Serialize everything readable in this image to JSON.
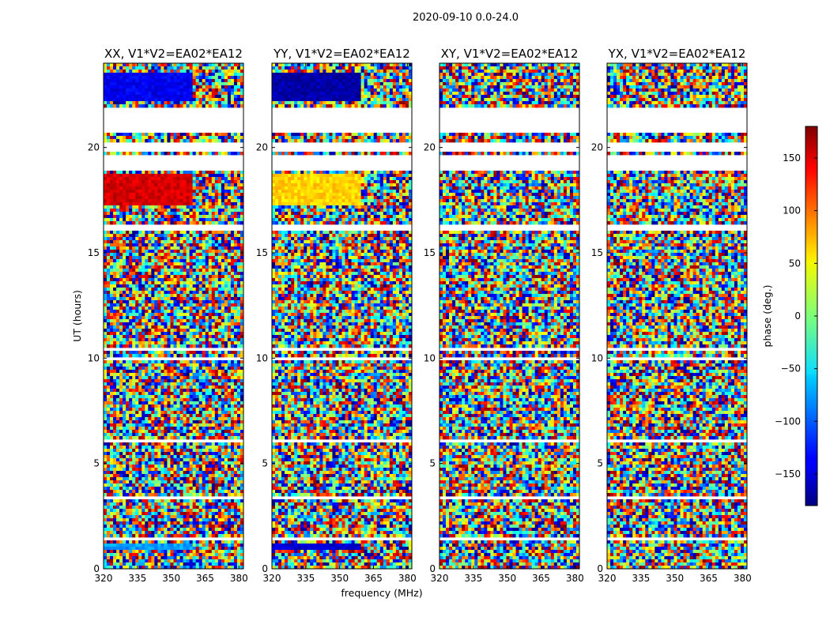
{
  "figure": {
    "suptitle": "2020-09-10 0.0-24.0",
    "xlabel": "frequency (MHz)",
    "ylabel": "UT (hours)"
  },
  "chart_data": {
    "type": "heatmap",
    "colormap": "jet",
    "xlim": [
      320,
      382
    ],
    "ylim": [
      0,
      24
    ],
    "x_ticks": [
      320,
      335,
      350,
      365,
      380
    ],
    "y_ticks": [
      0,
      5,
      10,
      15,
      20
    ],
    "x_unit": "MHz",
    "y_unit": "hours",
    "panels": [
      {
        "title": "XX, V1*V2=EA02*EA12",
        "coherent_regions": [
          {
            "ut_range": [
              22.2,
              23.6
            ],
            "freq_range": [
              320,
              360
            ],
            "phase_deg": -140
          },
          {
            "ut_range": [
              17.2,
              18.8
            ],
            "freq_range": [
              320,
              360
            ],
            "phase_deg": 150
          },
          {
            "ut_range": [
              0.95,
              1.25
            ],
            "freq_range": [
              320,
              360
            ],
            "phase_deg": -80
          }
        ]
      },
      {
        "title": "YY, V1*V2=EA02*EA12",
        "coherent_regions": [
          {
            "ut_range": [
              22.2,
              23.6
            ],
            "freq_range": [
              320,
              360
            ],
            "phase_deg": -165
          },
          {
            "ut_range": [
              17.2,
              18.8
            ],
            "freq_range": [
              320,
              360
            ],
            "phase_deg": 60
          },
          {
            "ut_range": [
              0.95,
              1.25
            ],
            "freq_range": [
              320,
              360
            ],
            "phase_deg": -150
          }
        ]
      },
      {
        "title": "XY, V1*V2=EA02*EA12",
        "coherent_regions": []
      },
      {
        "title": "YX, V1*V2=EA02*EA12",
        "coherent_regions": []
      }
    ],
    "blank_ut_ranges": [
      [
        20.7,
        21.85
      ],
      [
        19.8,
        20.3
      ],
      [
        18.9,
        19.6
      ],
      [
        16.1,
        16.3
      ],
      [
        10.3,
        10.55
      ],
      [
        9.85,
        10.0
      ],
      [
        6.0,
        6.15
      ],
      [
        3.3,
        3.5
      ],
      [
        1.4,
        1.55
      ]
    ],
    "colorbar": {
      "label": "phase (deg.)",
      "range": [
        -180,
        180
      ],
      "ticks": [
        -150,
        -100,
        -50,
        0,
        50,
        100,
        150
      ]
    }
  },
  "colors": {
    "axes": "#000000",
    "background": "#ffffff"
  }
}
